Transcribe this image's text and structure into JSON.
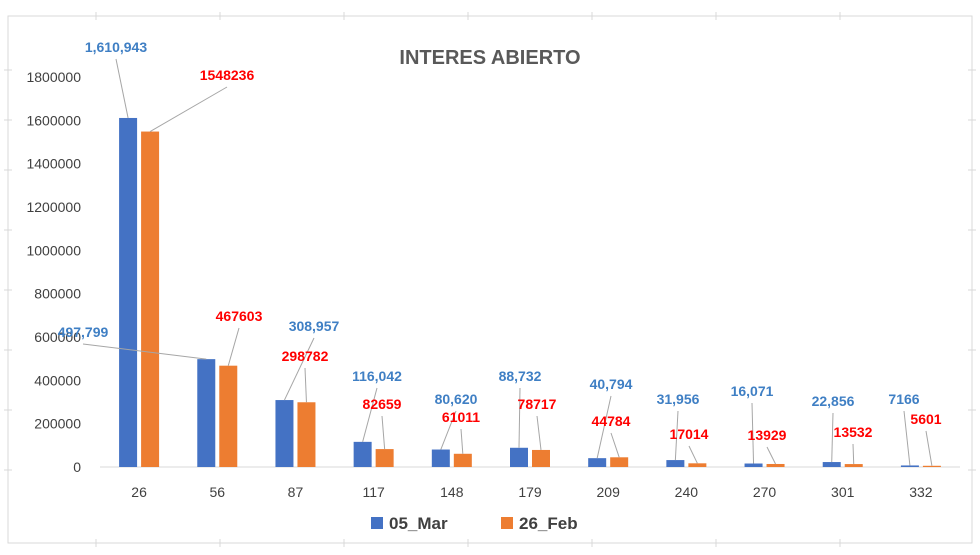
{
  "colors": {
    "mar": "#4472C4",
    "feb": "#ED7D31",
    "mar_label": "#3F7FC4",
    "feb_label": "#FF0000",
    "grid": "#D9D9D9",
    "leader": "#A6A6A6"
  },
  "chart_data": {
    "type": "bar",
    "title": "INTERES ABIERTO",
    "xlabel": "",
    "ylabel": "",
    "ylim": [
      0,
      1800000
    ],
    "yticks": [
      0,
      200000,
      400000,
      600000,
      800000,
      1000000,
      1200000,
      1400000,
      1600000,
      1800000
    ],
    "categories": [
      "26",
      "56",
      "87",
      "117",
      "148",
      "179",
      "209",
      "240",
      "270",
      "301",
      "332"
    ],
    "legend_position": "bottom",
    "grid": false,
    "series": [
      {
        "name": "05_Mar",
        "color": "#4472C4",
        "values": [
          1610943,
          497799,
          308957,
          116042,
          80620,
          88732,
          40794,
          31956,
          16071,
          22856,
          7166
        ],
        "labels": [
          "1,610,943",
          "497,799",
          "308,957",
          "116,042",
          "80,620",
          "88,732",
          "40,794",
          "31,956",
          "16,071",
          "22,856",
          "7166"
        ]
      },
      {
        "name": "26_Feb",
        "color": "#ED7D31",
        "values": [
          1548236,
          467603,
          298782,
          82659,
          61011,
          78717,
          44784,
          17014,
          13929,
          13532,
          5601
        ],
        "labels": [
          "1548236",
          "467603",
          "298782",
          "82659",
          "61011",
          "78717",
          "44784",
          "17014",
          "13929",
          "13532",
          "5601"
        ]
      }
    ]
  }
}
